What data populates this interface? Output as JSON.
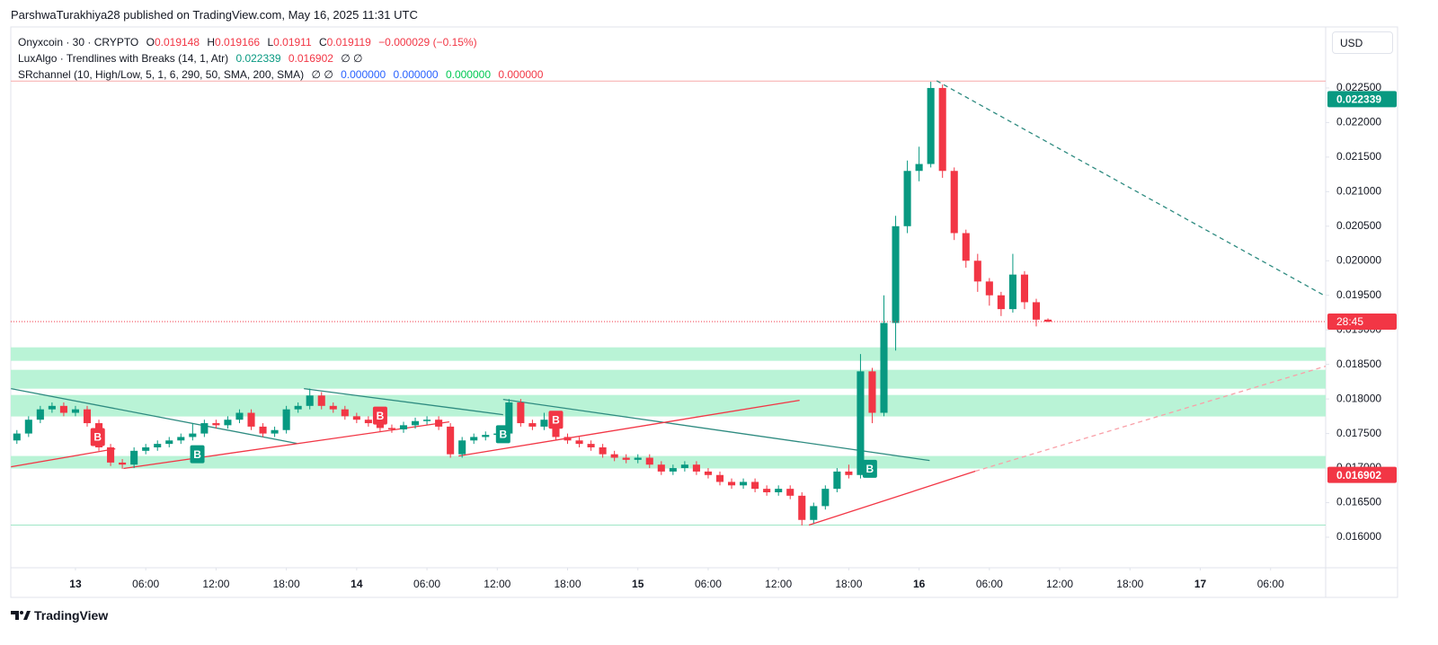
{
  "header": {
    "text": "ParshwaTurakhiya28 published on TradingView.com, May 16, 2025 11:31 UTC",
    "currency": "USD",
    "brand": "TradingView"
  },
  "legend": {
    "symbol": "Onyxcoin · 30 · CRYPTO",
    "ohlc_labels": [
      "O",
      "H",
      "L",
      "C"
    ],
    "change": "−0.000029 (−0.15%)",
    "indicators": [
      {
        "name": "LuxAlgo · Trendlines with Breaks (14, 1, Atr)",
        "extra": "∅ ∅"
      },
      {
        "name": "SRchannel (10, High/Low, 5, 1, 6, 290, 50, SMA, 200, SMA)",
        "extra": "∅ ∅",
        "values": [
          "0.000000",
          "0.000000",
          "0.000000",
          "0.000000"
        ]
      }
    ]
  },
  "chart_data": {
    "type": "candlestick",
    "up_color": "#089981",
    "down_color": "#f23645",
    "grid": false,
    "xlim": [
      -5.52,
      106.7
    ],
    "ylim": [
      0.015584,
      0.023383
    ],
    "xticks": [
      {
        "value": 0,
        "label": "13"
      },
      {
        "value": 6,
        "label": "06:00"
      },
      {
        "value": 12,
        "label": "12:00"
      },
      {
        "value": 18,
        "label": "18:00"
      },
      {
        "value": 24,
        "label": "14"
      },
      {
        "value": 30,
        "label": "06:00"
      },
      {
        "value": 36,
        "label": "12:00"
      },
      {
        "value": 42,
        "label": "18:00"
      },
      {
        "value": 48,
        "label": "15"
      },
      {
        "value": 54,
        "label": "06:00"
      },
      {
        "value": 60,
        "label": "12:00"
      },
      {
        "value": 66,
        "label": "18:00"
      },
      {
        "value": 72,
        "label": "16"
      },
      {
        "value": 78,
        "label": "06:00"
      },
      {
        "value": 84,
        "label": "12:00"
      },
      {
        "value": 90,
        "label": "18:00"
      },
      {
        "value": 96,
        "label": "17"
      },
      {
        "value": 102,
        "label": "06:00"
      }
    ],
    "yticks": [
      {
        "value": 0.016,
        "label": "0.016000"
      },
      {
        "value": 0.0165,
        "label": "0.016500"
      },
      {
        "value": 0.017,
        "label": "0.017000"
      },
      {
        "value": 0.0175,
        "label": "0.017500"
      },
      {
        "value": 0.018,
        "label": "0.018000"
      },
      {
        "value": 0.0185,
        "label": "0.018500"
      },
      {
        "value": 0.019,
        "label": "0.019000"
      },
      {
        "value": 0.0195,
        "label": "0.019500"
      },
      {
        "value": 0.02,
        "label": "0.020000"
      },
      {
        "value": 0.0205,
        "label": "0.020500"
      },
      {
        "value": 0.021,
        "label": "0.021000"
      },
      {
        "value": 0.0215,
        "label": "0.021500"
      },
      {
        "value": 0.022,
        "label": "0.022000"
      },
      {
        "value": 0.0225,
        "label": "0.022500"
      }
    ],
    "x": [
      -5,
      -4,
      -3,
      -2,
      -1,
      0,
      1,
      2,
      3,
      4,
      5,
      6,
      7,
      8,
      9,
      10,
      11,
      12,
      13,
      14,
      15,
      16,
      17,
      18,
      19,
      20,
      21,
      22,
      23,
      24,
      25,
      26,
      27,
      28,
      29,
      30,
      31,
      32,
      33,
      34,
      35,
      36,
      37,
      38,
      39,
      40,
      41,
      42,
      43,
      44,
      45,
      46,
      47,
      48,
      49,
      50,
      51,
      52,
      53,
      54,
      55,
      56,
      57,
      58,
      59,
      60,
      61,
      62,
      63,
      64,
      65,
      66,
      67,
      68,
      69,
      70,
      71,
      72,
      73,
      74,
      75,
      76,
      77,
      78,
      79,
      80,
      81,
      82,
      83
    ],
    "open": [
      0.0174,
      0.0175,
      0.0177,
      0.01785,
      0.0179,
      0.0178,
      0.01785,
      0.01765,
      0.0173,
      0.01708,
      0.01705,
      0.01725,
      0.0173,
      0.01735,
      0.0174,
      0.01745,
      0.0175,
      0.01765,
      0.01762,
      0.0177,
      0.0178,
      0.0176,
      0.0175,
      0.01755,
      0.01785,
      0.0179,
      0.01805,
      0.0179,
      0.01785,
      0.01775,
      0.0177,
      0.01765,
      0.01758,
      0.01756,
      0.01762,
      0.01768,
      0.0177,
      0.0176,
      0.0172,
      0.0174,
      0.01745,
      0.01748,
      0.0175,
      0.01795,
      0.01765,
      0.0176,
      0.0177,
      0.01745,
      0.0174,
      0.01735,
      0.0173,
      0.0172,
      0.01715,
      0.01712,
      0.01715,
      0.01705,
      0.01695,
      0.017,
      0.01705,
      0.01695,
      0.0169,
      0.0168,
      0.01675,
      0.0168,
      0.0167,
      0.01665,
      0.0167,
      0.0166,
      0.01625,
      0.01645,
      0.0167,
      0.01695,
      0.0169,
      0.0184,
      0.0178,
      0.0191,
      0.0205,
      0.0213,
      0.0214,
      0.0225,
      0.0213,
      0.0204,
      0.02,
      0.0197,
      0.0195,
      0.0193,
      0.0198,
      0.0194,
      0.019148
    ],
    "high": [
      0.01755,
      0.01775,
      0.0179,
      0.01795,
      0.01795,
      0.0179,
      0.0179,
      0.0177,
      0.01735,
      0.01713,
      0.0173,
      0.01735,
      0.0174,
      0.01745,
      0.0175,
      0.01765,
      0.0177,
      0.0177,
      0.01775,
      0.01785,
      0.01785,
      0.01765,
      0.0176,
      0.0179,
      0.01795,
      0.01815,
      0.0181,
      0.01795,
      0.0179,
      0.0178,
      0.01775,
      0.0177,
      0.01763,
      0.01767,
      0.01773,
      0.01775,
      0.01775,
      0.01765,
      0.01745,
      0.0175,
      0.01753,
      0.01755,
      0.018,
      0.018,
      0.0177,
      0.0178,
      0.01775,
      0.0175,
      0.01745,
      0.0174,
      0.01735,
      0.01725,
      0.0172,
      0.0172,
      0.0172,
      0.0171,
      0.01705,
      0.0171,
      0.0171,
      0.017,
      0.01695,
      0.01685,
      0.01685,
      0.01685,
      0.01675,
      0.01675,
      0.01675,
      0.01665,
      0.0165,
      0.01675,
      0.017,
      0.01705,
      0.01865,
      0.01845,
      0.0195,
      0.02065,
      0.02145,
      0.02165,
      0.02259,
      0.02255,
      0.02135,
      0.02045,
      0.0201,
      0.01975,
      0.01955,
      0.0201,
      0.01985,
      0.01945,
      0.019166
    ],
    "low": [
      0.01735,
      0.01745,
      0.01765,
      0.0178,
      0.01775,
      0.01775,
      0.0176,
      0.01725,
      0.01703,
      0.01699,
      0.017,
      0.0172,
      0.01725,
      0.0173,
      0.01735,
      0.0174,
      0.01745,
      0.01757,
      0.01757,
      0.01765,
      0.01755,
      0.01745,
      0.01745,
      0.0175,
      0.0178,
      0.01785,
      0.01785,
      0.0178,
      0.0177,
      0.01765,
      0.0176,
      0.01753,
      0.01751,
      0.01751,
      0.01757,
      0.01763,
      0.01755,
      0.01715,
      0.01715,
      0.01735,
      0.0174,
      0.01743,
      0.01745,
      0.0176,
      0.01755,
      0.01755,
      0.0174,
      0.01735,
      0.0173,
      0.01725,
      0.01715,
      0.0171,
      0.01707,
      0.01707,
      0.017,
      0.0169,
      0.0169,
      0.01695,
      0.0169,
      0.01685,
      0.01675,
      0.0167,
      0.0167,
      0.01665,
      0.0166,
      0.0166,
      0.01655,
      0.01617,
      0.0162,
      0.0164,
      0.01665,
      0.01685,
      0.01685,
      0.01765,
      0.01775,
      0.0187,
      0.0204,
      0.02115,
      0.02135,
      0.0212,
      0.0203,
      0.0199,
      0.01955,
      0.01935,
      0.0192,
      0.01925,
      0.0193,
      0.01905,
      0.01911
    ],
    "close": [
      0.0175,
      0.0177,
      0.01785,
      0.0179,
      0.0178,
      0.01785,
      0.01765,
      0.0173,
      0.01708,
      0.01705,
      0.01725,
      0.0173,
      0.01735,
      0.0174,
      0.01745,
      0.0175,
      0.01765,
      0.01762,
      0.0177,
      0.0178,
      0.0176,
      0.0175,
      0.01755,
      0.01785,
      0.0179,
      0.01805,
      0.0179,
      0.01785,
      0.01775,
      0.0177,
      0.01765,
      0.01758,
      0.01756,
      0.01762,
      0.01768,
      0.0177,
      0.0176,
      0.0172,
      0.0174,
      0.01745,
      0.01748,
      0.0175,
      0.01795,
      0.01765,
      0.0176,
      0.0177,
      0.01745,
      0.0174,
      0.01735,
      0.0173,
      0.0172,
      0.01715,
      0.01712,
      0.01715,
      0.01705,
      0.01695,
      0.017,
      0.01705,
      0.01695,
      0.0169,
      0.0168,
      0.01675,
      0.0168,
      0.0167,
      0.01665,
      0.0167,
      0.0166,
      0.01625,
      0.01645,
      0.0167,
      0.01695,
      0.0169,
      0.0184,
      0.0178,
      0.0191,
      0.0205,
      0.0213,
      0.0214,
      0.0225,
      0.0213,
      0.0204,
      0.02,
      0.0197,
      0.0195,
      0.0193,
      0.0198,
      0.0194,
      0.019148,
      0.019119
    ],
    "zone_color": "#b9f3d6",
    "zones": [
      {
        "from": 0.018552,
        "to": 0.018747
      },
      {
        "from": 0.018149,
        "to": 0.018422
      },
      {
        "from": 0.017747,
        "to": 0.018058
      },
      {
        "from": 0.016994,
        "to": 0.017175
      }
    ],
    "levels": [
      {
        "value": 0.0226,
        "color": "#f7a9a9"
      },
      {
        "value": 0.016175,
        "color": "#9ee6c6"
      }
    ],
    "trendlines": [
      {
        "color": "#2e8b80",
        "dashed": false,
        "x": [
          -5.5,
          18.9
        ],
        "y": [
          0.018149,
          0.017357
        ]
      },
      {
        "color": "#2e8b80",
        "dashed": false,
        "x": [
          19.5,
          36.5
        ],
        "y": [
          0.018149,
          0.017773
        ]
      },
      {
        "color": "#2e8b80",
        "dashed": false,
        "x": [
          36.5,
          72.9
        ],
        "y": [
          0.017994,
          0.01711
        ]
      },
      {
        "color": "#2e8b80",
        "dashed": true,
        "x": [
          73.5,
          106.7
        ],
        "y": [
          0.022604,
          0.019487
        ]
      },
      {
        "color": "#f23645",
        "dashed": false,
        "x": [
          -5.5,
          3.4
        ],
        "y": [
          0.017019,
          0.017279
        ]
      },
      {
        "color": "#f23645",
        "dashed": false,
        "x": [
          4.1,
          31.9
        ],
        "y": [
          0.016994,
          0.017669
        ]
      },
      {
        "color": "#f23645",
        "dashed": false,
        "x": [
          32.7,
          61.8
        ],
        "y": [
          0.017175,
          0.017981
        ]
      },
      {
        "color": "#f23645",
        "dashed": false,
        "x": [
          62.6,
          76.8
        ],
        "y": [
          0.016175,
          0.016955
        ]
      },
      {
        "color": "#f9a0a8",
        "dashed": true,
        "x": [
          76.8,
          106.7
        ],
        "y": [
          0.016955,
          0.018474
        ]
      }
    ],
    "signals": [
      {
        "label": "B",
        "x": 1.9,
        "y": 0.01745,
        "color": "#f23645"
      },
      {
        "label": "B",
        "x": 10.4,
        "y": 0.0172,
        "color": "#089981"
      },
      {
        "label": "B",
        "x": 26,
        "y": 0.01776,
        "color": "#f23645"
      },
      {
        "label": "B",
        "x": 36.5,
        "y": 0.01749,
        "color": "#089981"
      },
      {
        "label": "B",
        "x": 41,
        "y": 0.0177,
        "color": "#f23645"
      },
      {
        "label": "B",
        "x": 67.8,
        "y": 0.01699,
        "color": "#089981"
      }
    ],
    "countdown": "28:45",
    "countdown_color": "#f23645",
    "price_labels": [
      {
        "value": 0.022339,
        "color": "#089981"
      },
      {
        "value": 0.016902,
        "color": "#f23645"
      }
    ]
  }
}
